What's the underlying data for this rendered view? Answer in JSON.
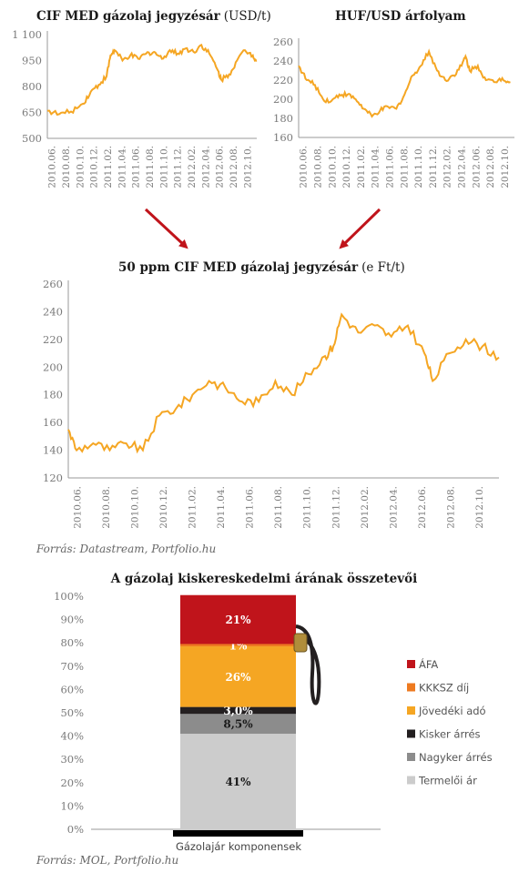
{
  "chart_data": [
    {
      "id": "cif",
      "type": "line",
      "title": "CIF MED gázolaj jegyzésár",
      "unit": "(USD/t)",
      "ylim": [
        500,
        1100
      ],
      "yticks": [
        "1 100",
        "950",
        "800",
        "650",
        "500"
      ],
      "ytick_values": [
        1100,
        950,
        800,
        650,
        500
      ],
      "xticks": [
        "2010.06.",
        "2010.08.",
        "2010.10.",
        "2010.12.",
        "2011.02.",
        "2011.04.",
        "2011.06.",
        "2011.08.",
        "2011.10.",
        "2011.12.",
        "2012.02.",
        "2012.04.",
        "2012.06.",
        "2012.08.",
        "2012.10."
      ],
      "color": "#F5A623",
      "series": [
        {
          "values": [
            [
              0,
              660
            ],
            [
              3,
              640
            ],
            [
              6,
              655
            ],
            [
              9,
              700
            ],
            [
              11,
              770
            ],
            [
              13,
              810
            ],
            [
              15,
              860
            ],
            [
              16,
              980
            ],
            [
              17,
              1010
            ],
            [
              19,
              950
            ],
            [
              21,
              980
            ],
            [
              23,
              960
            ],
            [
              25,
              990
            ],
            [
              27,
              1000
            ],
            [
              29,
              960
            ],
            [
              31,
              1010
            ],
            [
              33,
              990
            ],
            [
              35,
              1020
            ],
            [
              37,
              1000
            ],
            [
              39,
              1040
            ],
            [
              41,
              990
            ],
            [
              43,
              900
            ],
            [
              44,
              840
            ],
            [
              46,
              870
            ],
            [
              48,
              950
            ],
            [
              50,
              1010
            ],
            [
              52,
              980
            ],
            [
              53,
              950
            ]
          ]
        }
      ]
    },
    {
      "id": "huf",
      "type": "line",
      "title": "HUF/USD árfolyam",
      "ylim": [
        160,
        260
      ],
      "yticks": [
        "260",
        "240",
        "220",
        "200",
        "180",
        "160"
      ],
      "ytick_values": [
        260,
        240,
        220,
        200,
        180,
        160
      ],
      "xticks": [
        "2010.06.",
        "2010.08.",
        "2010.10.",
        "2010.12.",
        "2011.02.",
        "2011.04.",
        "2011.06.",
        "2011.08.",
        "2011.10.",
        "2011.12.",
        "2012.02.",
        "2012.04.",
        "2012.06.",
        "2012.08.",
        "2012.10."
      ],
      "color": "#F5A623",
      "series": [
        {
          "values": [
            [
              0,
              235
            ],
            [
              2,
              220
            ],
            [
              4,
              215
            ],
            [
              6,
              200
            ],
            [
              8,
              198
            ],
            [
              10,
              205
            ],
            [
              12,
              205
            ],
            [
              14,
              200
            ],
            [
              16,
              190
            ],
            [
              18,
              182
            ],
            [
              20,
              188
            ],
            [
              22,
              192
            ],
            [
              24,
              190
            ],
            [
              26,
              205
            ],
            [
              28,
              225
            ],
            [
              30,
              235
            ],
            [
              32,
              250
            ],
            [
              34,
              230
            ],
            [
              36,
              220
            ],
            [
              38,
              225
            ],
            [
              40,
              235
            ],
            [
              41,
              245
            ],
            [
              42,
              230
            ],
            [
              44,
              235
            ],
            [
              46,
              220
            ],
            [
              48,
              218
            ],
            [
              50,
              222
            ],
            [
              52,
              218
            ]
          ]
        }
      ]
    },
    {
      "id": "ft",
      "type": "line",
      "title": "50 ppm CIF MED gázolaj jegyzésár",
      "unit": "(e Ft/t)",
      "ylim": [
        120,
        260
      ],
      "yticks": [
        "260",
        "240",
        "220",
        "200",
        "180",
        "160",
        "140",
        "120"
      ],
      "ytick_values": [
        260,
        240,
        220,
        200,
        180,
        160,
        140,
        120
      ],
      "xticks": [
        "2010.06.",
        "2010.08.",
        "2010.10.",
        "2010.12.",
        "2011.02.",
        "2011.04.",
        "2011.06.",
        "2011.08.",
        "2011.10.",
        "2011.12.",
        "2012.02.",
        "2012.04.",
        "2012.06.",
        "2012.08.",
        "2012.10."
      ],
      "color": "#F5A623",
      "series": [
        {
          "values": [
            [
              0,
              155
            ],
            [
              1,
              140
            ],
            [
              3,
              145
            ],
            [
              5,
              140
            ],
            [
              7,
              145
            ],
            [
              9,
              140
            ],
            [
              11,
              165
            ],
            [
              13,
              170
            ],
            [
              15,
              180
            ],
            [
              17,
              190
            ],
            [
              19,
              185
            ],
            [
              21,
              175
            ],
            [
              23,
              175
            ],
            [
              25,
              190
            ],
            [
              27,
              180
            ],
            [
              29,
              195
            ],
            [
              31,
              208
            ],
            [
              32,
              215
            ],
            [
              33,
              238
            ],
            [
              35,
              225
            ],
            [
              37,
              230
            ],
            [
              39,
              222
            ],
            [
              41,
              230
            ],
            [
              43,
              210
            ],
            [
              44,
              190
            ],
            [
              46,
              210
            ],
            [
              48,
              220
            ],
            [
              50,
              215
            ],
            [
              52,
              207
            ]
          ]
        }
      ]
    },
    {
      "id": "stack",
      "type": "bar",
      "title": "A gázolaj kiskereskedelmi árának összetevői",
      "xlabel": "Gázolajár komponensek",
      "categories": [
        "Gázolajár komponensek"
      ],
      "yticks": [
        "100%",
        "90%",
        "80%",
        "70%",
        "60%",
        "50%",
        "40%",
        "30%",
        "20%",
        "10%",
        "0%"
      ],
      "ytick_values": [
        100,
        90,
        80,
        70,
        60,
        50,
        40,
        30,
        20,
        10,
        0
      ],
      "series": [
        {
          "name": "Termelői ár",
          "value": 41,
          "label": "41%",
          "color": "#CCCCCC",
          "text_color": "#1a1a1a"
        },
        {
          "name": "Nagyker árrés",
          "value": 8.5,
          "label": "8,5%",
          "color": "#8C8C8C",
          "text_color": "#1a1a1a"
        },
        {
          "name": "Kisker árrés",
          "value": 3.0,
          "label": "3,0%",
          "color": "#231F20",
          "text_color": "#ffffff"
        },
        {
          "name": "Jövedéki adó",
          "value": 26,
          "label": "26%",
          "color": "#F5A623",
          "text_color": "#ffffff"
        },
        {
          "name": "KKKSZ díj",
          "value": 1,
          "label": "1%",
          "color": "#EE7A20",
          "text_color": "#ffffff"
        },
        {
          "name": "ÁFA",
          "value": 21,
          "label": "21%",
          "color": "#C0141B",
          "text_color": "#ffffff"
        }
      ],
      "legend_order": [
        "ÁFA",
        "KKKSZ díj",
        "Jövedéki adó",
        "Kisker árrés",
        "Nagyker árrés",
        "Termelői ár"
      ]
    }
  ],
  "sources": {
    "top": "Forrás: Datastream, Portfolio.hu",
    "bottom": "Forrás: MOL, Portfolio.hu"
  },
  "arrow_color": "#C0141B"
}
